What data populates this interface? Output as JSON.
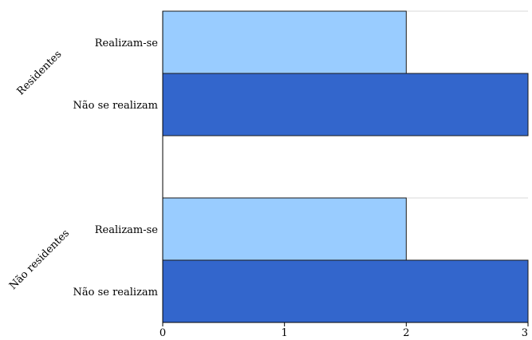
{
  "chart_data": {
    "type": "bar",
    "orientation": "horizontal",
    "groups": [
      {
        "name": "Residentes",
        "bars": [
          {
            "label": "Realizam-se",
            "value": 2
          },
          {
            "label": "Não se realizam",
            "value": 3
          }
        ]
      },
      {
        "name": "Não residentes",
        "bars": [
          {
            "label": "Realizam-se",
            "value": 2
          },
          {
            "label": "Não se realizam",
            "value": 3
          }
        ]
      }
    ],
    "x_ticks": [
      "0",
      "1",
      "2",
      "3"
    ],
    "xlim": [
      0,
      3
    ],
    "grid": true,
    "title": "",
    "xlabel": "",
    "ylabel": ""
  },
  "colors": {
    "realizam_se": "#99CCFF",
    "nao_se_realizam": "#3366CC",
    "bar_border": "#1a1a1a",
    "grid": "#d9d9d9",
    "axis": "#000000"
  }
}
